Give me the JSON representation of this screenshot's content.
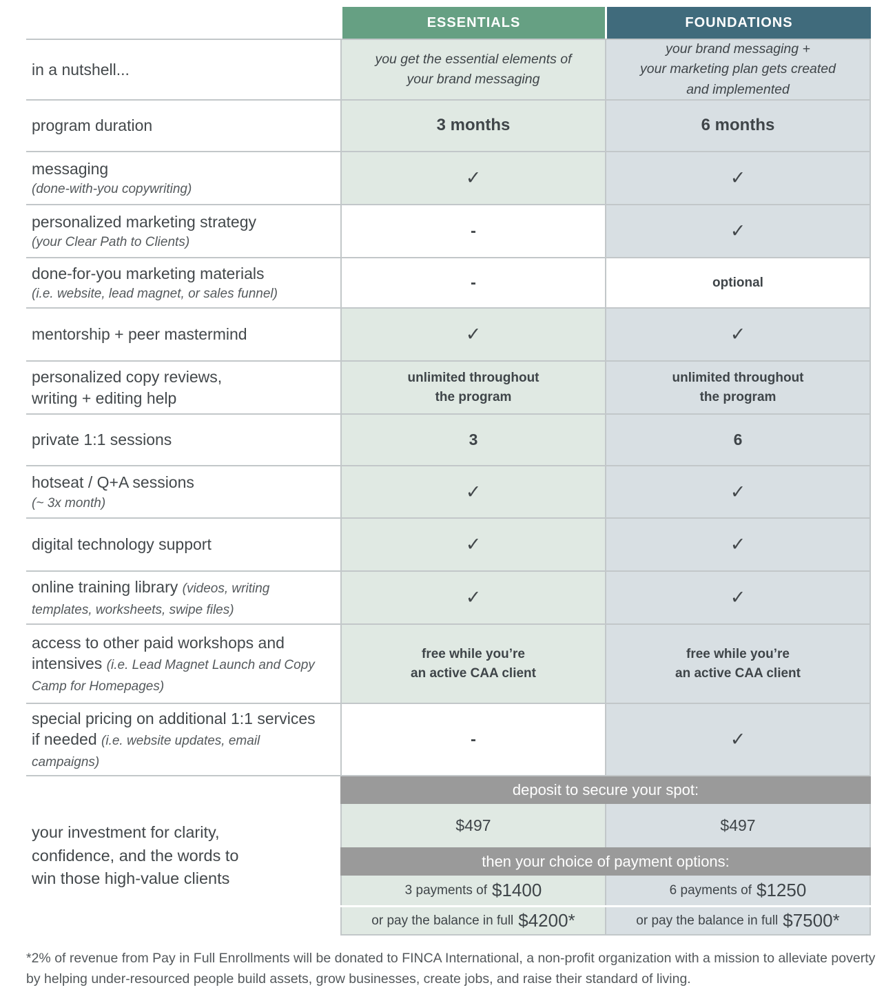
{
  "colors": {
    "essentials_header_bg": "#66a083",
    "foundations_header_bg": "#406b7c",
    "essentials_cell_bg": "#e0e9e3",
    "foundations_cell_bg": "#d8dfe3",
    "band_bg": "#9a9a9a",
    "border": "#c2c7c9",
    "text": "#43484b"
  },
  "glyphs": {
    "check": "✓",
    "dash": "-"
  },
  "header": {
    "essentials": "ESSENTIALS",
    "foundations": "FOUNDATIONS"
  },
  "rows": [
    {
      "label": "in a nutshell...",
      "essentials": {
        "type": "text",
        "text": "you get the essential elements of\nyour brand messaging",
        "italic": true,
        "filled": true
      },
      "foundations": {
        "type": "text",
        "text": "your brand messaging +\nyour marketing plan gets created\nand implemented",
        "italic": true,
        "filled": true
      }
    },
    {
      "label": "program duration",
      "essentials": {
        "type": "text",
        "text": "3 months",
        "bold": true,
        "filled": true
      },
      "foundations": {
        "type": "text",
        "text": "6 months",
        "bold": true,
        "filled": true
      }
    },
    {
      "label": "messaging",
      "sub_block": "(done-with-you copywriting)",
      "essentials": {
        "type": "check",
        "filled": true
      },
      "foundations": {
        "type": "check",
        "filled": true
      }
    },
    {
      "label": "personalized marketing strategy",
      "sub_block": "(your Clear Path to Clients)",
      "essentials": {
        "type": "dash",
        "filled": false
      },
      "foundations": {
        "type": "check",
        "filled": true
      }
    },
    {
      "label": "done-for-you marketing materials",
      "sub_block": "(i.e. website, lead magnet, or sales funnel)",
      "essentials": {
        "type": "dash",
        "filled": false
      },
      "foundations": {
        "type": "text",
        "text": "optional",
        "filled": false
      }
    },
    {
      "label": "mentorship + peer mastermind",
      "essentials": {
        "type": "check",
        "filled": true
      },
      "foundations": {
        "type": "check",
        "filled": true
      }
    },
    {
      "label": "personalized copy reviews,\nwriting + editing help",
      "essentials": {
        "type": "text",
        "text": "unlimited throughout\nthe program",
        "filled": true
      },
      "foundations": {
        "type": "text",
        "text": "unlimited throughout\nthe program",
        "filled": true
      }
    },
    {
      "label": "private 1:1 sessions",
      "essentials": {
        "type": "text",
        "text": "3",
        "num": true,
        "filled": true
      },
      "foundations": {
        "type": "text",
        "text": "6",
        "num": true,
        "filled": true
      }
    },
    {
      "label": "hotseat / Q+A sessions",
      "sub_block": "(~ 3x month)",
      "essentials": {
        "type": "check",
        "filled": true
      },
      "foundations": {
        "type": "check",
        "filled": true
      }
    },
    {
      "label": "digital technology support",
      "essentials": {
        "type": "check",
        "filled": true
      },
      "foundations": {
        "type": "check",
        "filled": true
      }
    },
    {
      "label": "online training library",
      "sub_inline": "(videos, writing templates, worksheets, swipe files)",
      "essentials": {
        "type": "check",
        "filled": true
      },
      "foundations": {
        "type": "check",
        "filled": true
      }
    },
    {
      "label": "access to other paid workshops and intensives",
      "sub_inline": "(i.e. Lead Magnet Launch and Copy Camp for Homepages)",
      "essentials": {
        "type": "text",
        "text": "free while you’re\nan active CAA client",
        "filled": true
      },
      "foundations": {
        "type": "text",
        "text": "free while you’re\nan active CAA client",
        "filled": true
      }
    },
    {
      "label": "special pricing on additional 1:1 services if needed",
      "sub_inline": "(i.e. website updates, email campaigns)",
      "essentials": {
        "type": "dash",
        "filled": false
      },
      "foundations": {
        "type": "check",
        "filled": true
      }
    }
  ],
  "investment": {
    "label": "your investment for clarity,\nconfidence, and the words to\nwin those high-value clients",
    "deposit_header": "deposit to secure your spot:",
    "deposit": {
      "essentials": "$497",
      "foundations": "$497"
    },
    "payment_header": "then your choice of payment options:",
    "payments": {
      "essentials": {
        "prefix": "3 payments of",
        "amount": "$1400"
      },
      "foundations": {
        "prefix": "6 payments of",
        "amount": "$1250"
      }
    },
    "pay_in_full": {
      "essentials": {
        "prefix": "or pay the balance in full",
        "amount": "$4200*"
      },
      "foundations": {
        "prefix": "or pay the balance in full",
        "amount": "$7500*"
      }
    }
  },
  "footnote": "*2% of revenue from Pay in Full Enrollments will be donated to FINCA International, a non-profit organization with a mission to alleviate poverty by helping under-resourced people build assets, grow businesses, create jobs, and raise their standard of living."
}
